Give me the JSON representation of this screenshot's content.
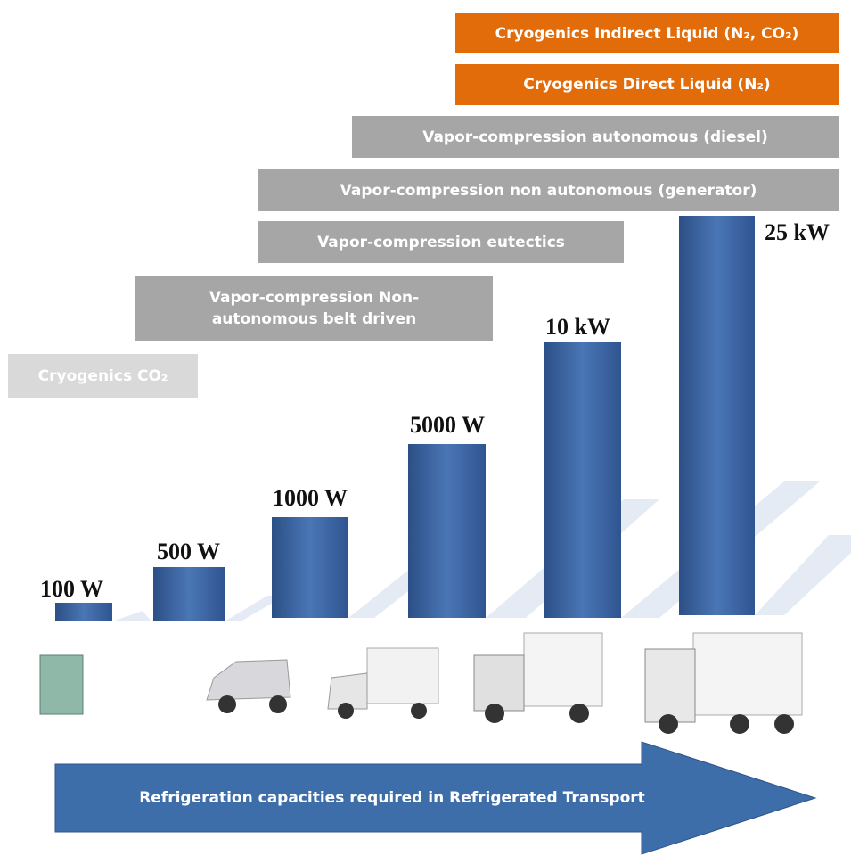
{
  "technologies": [
    {
      "label": "Cryogenics Indirect Liquid (N₂, CO₂)"
    },
    {
      "label": "Cryogenics Direct Liquid (N₂)"
    },
    {
      "label": "Vapor-compression autonomous (diesel)"
    },
    {
      "label": "Vapor-compression non autonomous (generator)"
    },
    {
      "label": "Vapor-compression eutectics"
    },
    {
      "lines": [
        "Vapor-compression Non-",
        "autonomous belt driven"
      ]
    },
    {
      "label": "Cryogenics CO₂"
    }
  ],
  "capacities": [
    "100 W",
    "500 W",
    "1000 W",
    "5000 W",
    "10 kW",
    "25 kW"
  ],
  "arrow_label": "Refrigeration capacities required in Refrigerated Transport"
}
